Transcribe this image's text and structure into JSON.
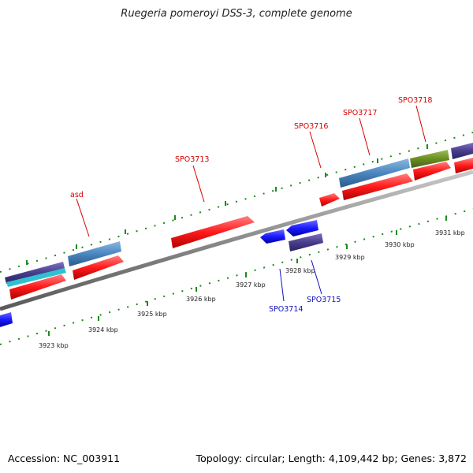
{
  "title": "Ruegeria pomeroyi DSS-3, complete genome",
  "footer": {
    "accession": "Accession: NC_003911",
    "summary": "Topology: circular; Length: 4,109,442 bp; Genes: 3,872"
  },
  "scale_labels": [
    "3923 kbp",
    "3924 kbp",
    "3925 kbp",
    "3926 kbp",
    "3927 kbp",
    "3928 kbp",
    "3929 kbp",
    "3930 kbp",
    "3931 kbp"
  ],
  "gene_labels": {
    "asd": "asd",
    "spo3713": "SPO3713",
    "spo3714": "SPO3714",
    "spo3715": "SPO3715",
    "spo3716": "SPO3716",
    "spo3717": "SPO3717",
    "spo3718": "SPO3718"
  },
  "colors": {
    "backbone": "#888888",
    "cds_red": "#ff2020",
    "cds_blue": "#1a1aff",
    "cog_steelblue": "#4a86c0",
    "cog_olive": "#6b8e23",
    "cog_darkslate": "#483d8b",
    "tick_green": "#1a8a1a",
    "label_red": "#d40000",
    "label_blue": "#1010c0"
  }
}
